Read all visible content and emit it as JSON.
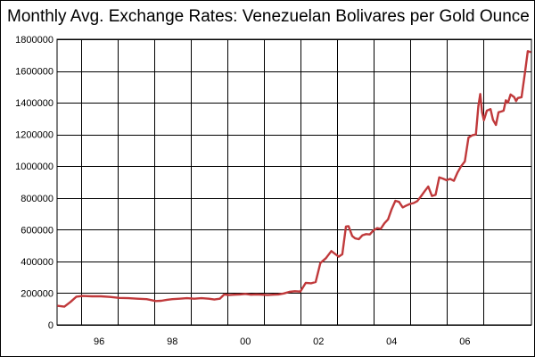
{
  "chart_data": {
    "type": "line",
    "title": "Monthly Avg. Exchange Rates: Venezuelan Bolivares per Gold Ounce",
    "xlabel": "",
    "ylabel": "",
    "ylim": [
      0,
      1800000
    ],
    "xlim": [
      1995.35,
      2007.62
    ],
    "grid": true,
    "legend": "none",
    "y_ticks": [
      0,
      200000,
      400000,
      600000,
      800000,
      1000000,
      1200000,
      1400000,
      1600000,
      1800000
    ],
    "y_tick_labels": [
      "0",
      "200000",
      "400000",
      "600000",
      "800000",
      "1000000",
      "1200000",
      "1400000",
      "1600000",
      "1800000"
    ],
    "x_gridlines": [
      1996,
      1997,
      1998,
      1999,
      2000,
      2001,
      2002,
      2003,
      2004,
      2005,
      2006,
      2007
    ],
    "x_tick_labels": [
      {
        "x": 1996,
        "label": "96"
      },
      {
        "x": 1998,
        "label": "98"
      },
      {
        "x": 2000,
        "label": "00"
      },
      {
        "x": 2002,
        "label": "02"
      },
      {
        "x": 2004,
        "label": "04"
      },
      {
        "x": 2006,
        "label": "06"
      }
    ],
    "series": [
      {
        "color": "#c0393b",
        "points": [
          [
            1995.38,
            120000
          ],
          [
            1995.55,
            115000
          ],
          [
            1995.72,
            145000
          ],
          [
            1995.88,
            178000
          ],
          [
            1996.05,
            182000
          ],
          [
            1996.3,
            180000
          ],
          [
            1996.55,
            180000
          ],
          [
            1996.8,
            176000
          ],
          [
            1997.05,
            170000
          ],
          [
            1997.3,
            168000
          ],
          [
            1997.55,
            165000
          ],
          [
            1997.8,
            162000
          ],
          [
            1997.95,
            155000
          ],
          [
            1998.05,
            150000
          ],
          [
            1998.2,
            152000
          ],
          [
            1998.35,
            158000
          ],
          [
            1998.5,
            162000
          ],
          [
            1998.7,
            165000
          ],
          [
            1998.9,
            168000
          ],
          [
            1999.1,
            165000
          ],
          [
            1999.3,
            168000
          ],
          [
            1999.5,
            165000
          ],
          [
            1999.65,
            160000
          ],
          [
            1999.8,
            165000
          ],
          [
            1999.92,
            192000
          ],
          [
            2000.05,
            188000
          ],
          [
            2000.2,
            190000
          ],
          [
            2000.35,
            192000
          ],
          [
            2000.5,
            195000
          ],
          [
            2000.65,
            190000
          ],
          [
            2000.8,
            192000
          ],
          [
            2000.95,
            190000
          ],
          [
            2001.1,
            188000
          ],
          [
            2001.25,
            190000
          ],
          [
            2001.4,
            192000
          ],
          [
            2001.55,
            198000
          ],
          [
            2001.7,
            208000
          ],
          [
            2001.85,
            212000
          ],
          [
            2002.0,
            210000
          ],
          [
            2002.15,
            265000
          ],
          [
            2002.3,
            262000
          ],
          [
            2002.42,
            270000
          ],
          [
            2002.55,
            390000
          ],
          [
            2002.7,
            420000
          ],
          [
            2002.85,
            465000
          ],
          [
            2002.95,
            448000
          ],
          [
            2003.05,
            430000
          ],
          [
            2003.15,
            445000
          ],
          [
            2003.25,
            620000
          ],
          [
            2003.32,
            622000
          ],
          [
            2003.42,
            560000
          ],
          [
            2003.5,
            545000
          ],
          [
            2003.6,
            540000
          ],
          [
            2003.7,
            565000
          ],
          [
            2003.8,
            572000
          ],
          [
            2003.9,
            570000
          ],
          [
            2004.0,
            595000
          ],
          [
            2004.1,
            610000
          ],
          [
            2004.2,
            605000
          ],
          [
            2004.3,
            640000
          ],
          [
            2004.4,
            665000
          ],
          [
            2004.5,
            730000
          ],
          [
            2004.6,
            782000
          ],
          [
            2004.7,
            775000
          ],
          [
            2004.8,
            740000
          ],
          [
            2004.9,
            752000
          ],
          [
            2005.0,
            762000
          ],
          [
            2005.1,
            768000
          ],
          [
            2005.2,
            780000
          ],
          [
            2005.3,
            810000
          ],
          [
            2005.4,
            842000
          ],
          [
            2005.5,
            872000
          ],
          [
            2005.6,
            812000
          ],
          [
            2005.7,
            820000
          ],
          [
            2005.8,
            930000
          ],
          [
            2005.9,
            922000
          ],
          [
            2006.0,
            912000
          ],
          [
            2006.1,
            920000
          ],
          [
            2006.2,
            908000
          ],
          [
            2006.3,
            960000
          ],
          [
            2006.4,
            1000000
          ],
          [
            2006.5,
            1030000
          ],
          [
            2006.6,
            1180000
          ],
          [
            2006.7,
            1195000
          ],
          [
            2006.8,
            1200000
          ],
          [
            2006.87,
            1380000
          ],
          [
            2006.92,
            1455000
          ],
          [
            2006.97,
            1340000
          ],
          [
            2007.02,
            1290000
          ],
          [
            2007.1,
            1350000
          ],
          [
            2007.2,
            1360000
          ],
          [
            2007.27,
            1292000
          ],
          [
            2007.35,
            1260000
          ],
          [
            2007.42,
            1340000
          ],
          [
            2007.5,
            1345000
          ],
          [
            2007.56,
            1350000
          ],
          [
            2007.62,
            1415000
          ],
          [
            2007.68,
            1400000
          ],
          [
            2007.75,
            1452000
          ],
          [
            2007.85,
            1435000
          ],
          [
            2007.9,
            1410000
          ],
          [
            2007.95,
            1430000
          ],
          [
            2008.05,
            1435000
          ],
          [
            2008.15,
            1600000
          ],
          [
            2008.22,
            1725000
          ],
          [
            2008.28,
            1720000
          ]
        ]
      }
    ]
  }
}
